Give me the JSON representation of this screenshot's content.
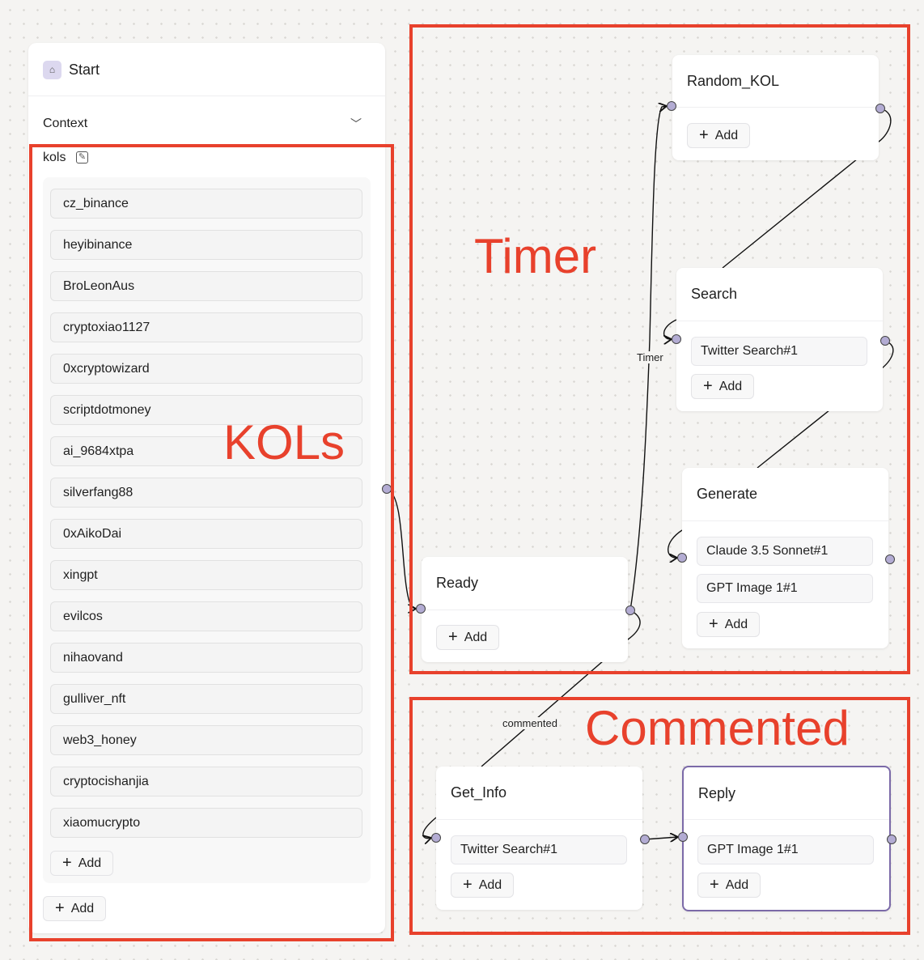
{
  "start": {
    "title": "Start",
    "icon": "home-icon",
    "context_label": "Context",
    "variable_name": "kols",
    "edit_icon": "edit-icon",
    "kols": [
      "cz_binance",
      "heyibinance",
      "BroLeonAus",
      "cryptoxiao1127",
      "0xcryptowizard",
      "scriptdotmoney",
      "ai_9684xtpa",
      "silverfang88",
      "0xAikoDai",
      "xingpt",
      "evilcos",
      "nihaovand",
      "gulliver_nft",
      "web3_honey",
      "cryptocishanjia",
      "xiaomucrypto"
    ],
    "list_add": "Add",
    "outer_add": "Add"
  },
  "annotations": {
    "kols": "KOLs",
    "timer": "Timer",
    "commented": "Commented",
    "color": "#e8412c"
  },
  "edges": {
    "timer": "Timer",
    "commented": "commented"
  },
  "nodes": {
    "random_kol": {
      "title": "Random_KOL",
      "add": "Add"
    },
    "search": {
      "title": "Search",
      "items": [
        "Twitter Search#1"
      ],
      "add": "Add"
    },
    "generate": {
      "title": "Generate",
      "items": [
        "Claude 3.5 Sonnet#1",
        "GPT Image 1#1"
      ],
      "add": "Add"
    },
    "ready": {
      "title": "Ready",
      "add": "Add"
    },
    "get_info": {
      "title": "Get_Info",
      "items": [
        "Twitter Search#1"
      ],
      "add": "Add"
    },
    "reply": {
      "title": "Reply",
      "items": [
        "GPT Image 1#1"
      ],
      "add": "Add",
      "selected": true,
      "border_color": "#7b6aa8"
    }
  }
}
